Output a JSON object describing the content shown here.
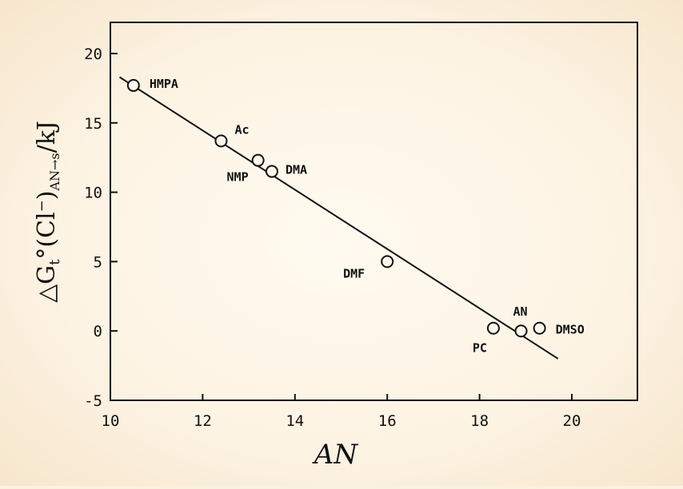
{
  "chart_data": {
    "type": "scatter",
    "title": "",
    "xlabel": "AN",
    "ylabel_prefix": "△G",
    "ylabel_t": "t",
    "ylabel_mid": "°(Cl",
    "ylabel_sup": "−",
    "ylabel_close": ")",
    "ylabel_sub": "AN→s",
    "ylabel_unit": "/kJ",
    "xlim": [
      10,
      21.4
    ],
    "ylim": [
      -5,
      22
    ],
    "xticks": [
      10,
      12,
      14,
      16,
      18,
      20
    ],
    "yticks": [
      -5,
      0,
      5,
      10,
      15,
      20
    ],
    "xtick_labels": [
      "10",
      "12",
      "14",
      "16",
      "18",
      "20"
    ],
    "ytick_labels": [
      "-5",
      "0",
      "5",
      "10",
      "15",
      "20"
    ],
    "grid": false,
    "points": [
      {
        "label": "HMPA",
        "x": 10.5,
        "y": 17.7
      },
      {
        "label": "Ac",
        "x": 12.4,
        "y": 13.7
      },
      {
        "label": "NMP",
        "x": 13.2,
        "y": 12.3
      },
      {
        "label": "DMA",
        "x": 13.5,
        "y": 11.5
      },
      {
        "label": "DMF",
        "x": 16.0,
        "y": 5.0
      },
      {
        "label": "PC",
        "x": 18.3,
        "y": 0.2
      },
      {
        "label": "AN",
        "x": 18.9,
        "y": 0.0
      },
      {
        "label": "DMSO",
        "x": 19.3,
        "y": 0.2
      }
    ],
    "fit_line": {
      "x": [
        10.2,
        19.7
      ],
      "y": [
        18.3,
        -2.0
      ]
    }
  }
}
